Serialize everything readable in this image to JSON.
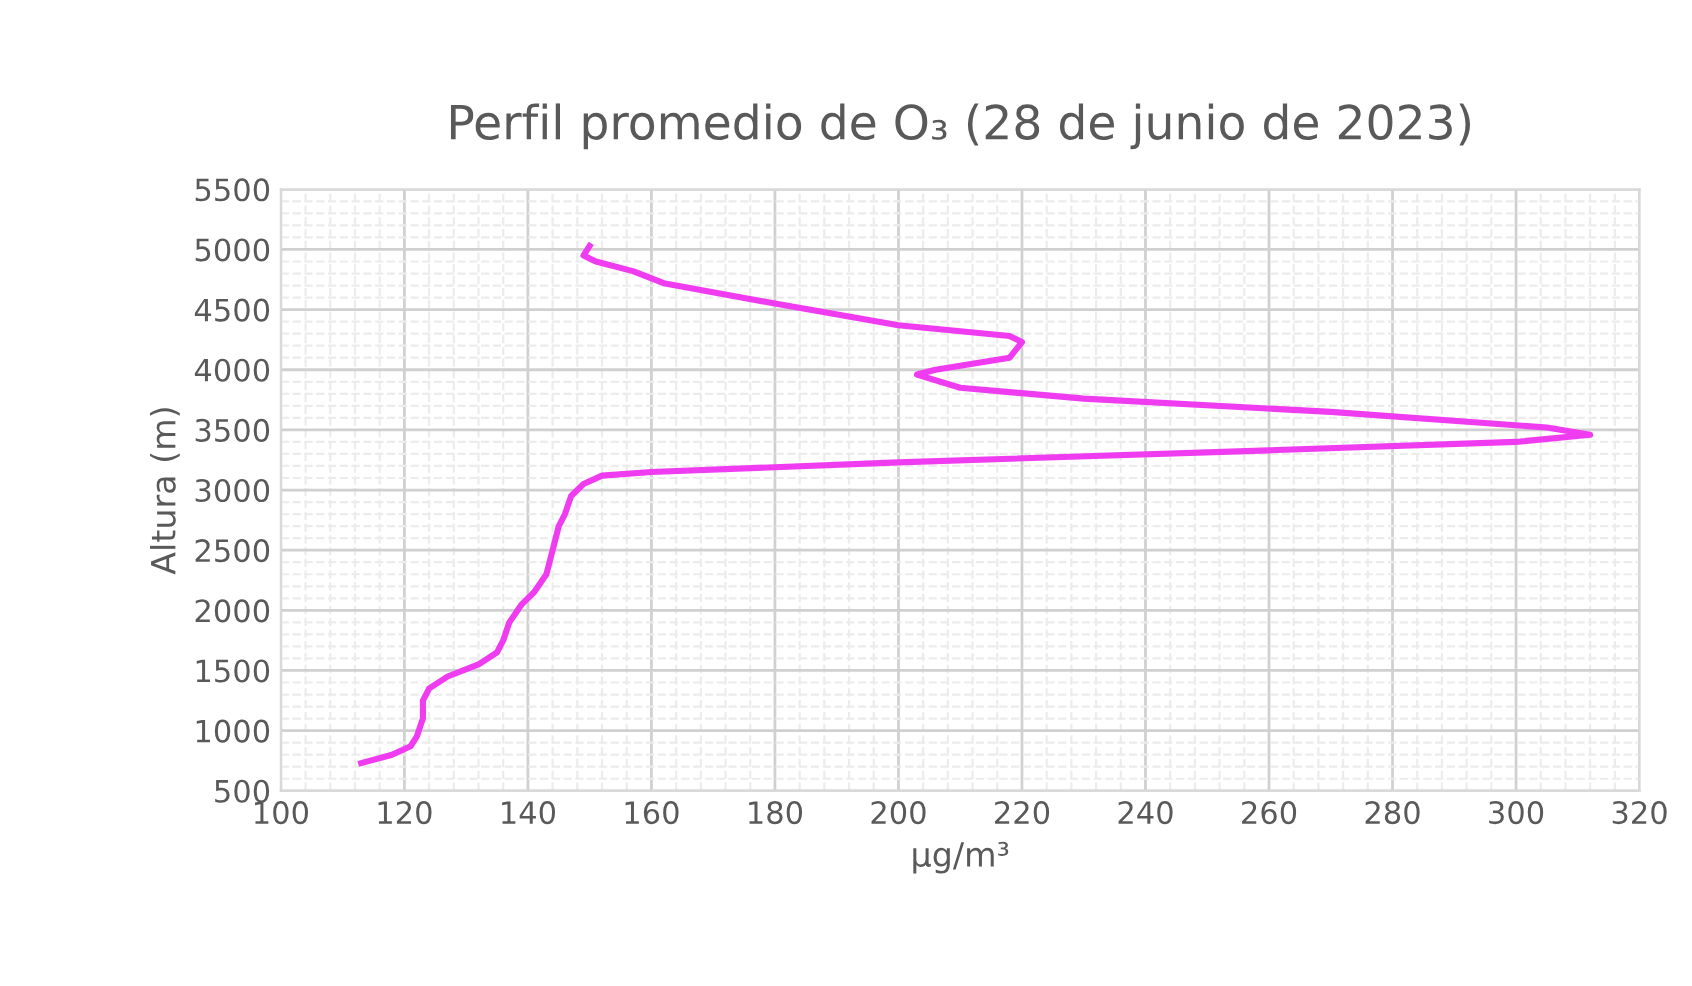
{
  "chart_data": {
    "type": "line",
    "title": "Perfil promedio de O₃ (28 de junio de 2023)",
    "xlabel": "µg/m³",
    "ylabel": "Altura (m)",
    "series": [
      {
        "color": "#f03cf0",
        "x": [
          113,
          118,
          121,
          122,
          123,
          123,
          124,
          127,
          132,
          135,
          136,
          137,
          139,
          141,
          143,
          144,
          145,
          146,
          147,
          149,
          152,
          160,
          200,
          260,
          300,
          312,
          305,
          270,
          230,
          210,
          203,
          206,
          218,
          220,
          218,
          200,
          180,
          162,
          157,
          151,
          149,
          150
        ],
        "values": [
          730,
          800,
          870,
          950,
          1100,
          1250,
          1350,
          1450,
          1550,
          1650,
          1750,
          1900,
          2050,
          2150,
          2300,
          2500,
          2700,
          2800,
          2950,
          3050,
          3120,
          3150,
          3230,
          3330,
          3400,
          3460,
          3520,
          3650,
          3760,
          3850,
          3960,
          4000,
          4100,
          4230,
          4280,
          4370,
          4550,
          4720,
          4820,
          4900,
          4950,
          5030
        ]
      }
    ],
    "xlim": [
      100,
      320
    ],
    "xticks": [
      100,
      120,
      140,
      160,
      180,
      200,
      220,
      240,
      260,
      280,
      300,
      320
    ],
    "ylim": [
      500,
      5500
    ],
    "yticks": [
      500,
      1000,
      1500,
      2000,
      2500,
      3000,
      3500,
      4000,
      4500,
      5000,
      5500
    ],
    "grid": true,
    "marker": "none",
    "line_style": "solid",
    "legend": false
  }
}
